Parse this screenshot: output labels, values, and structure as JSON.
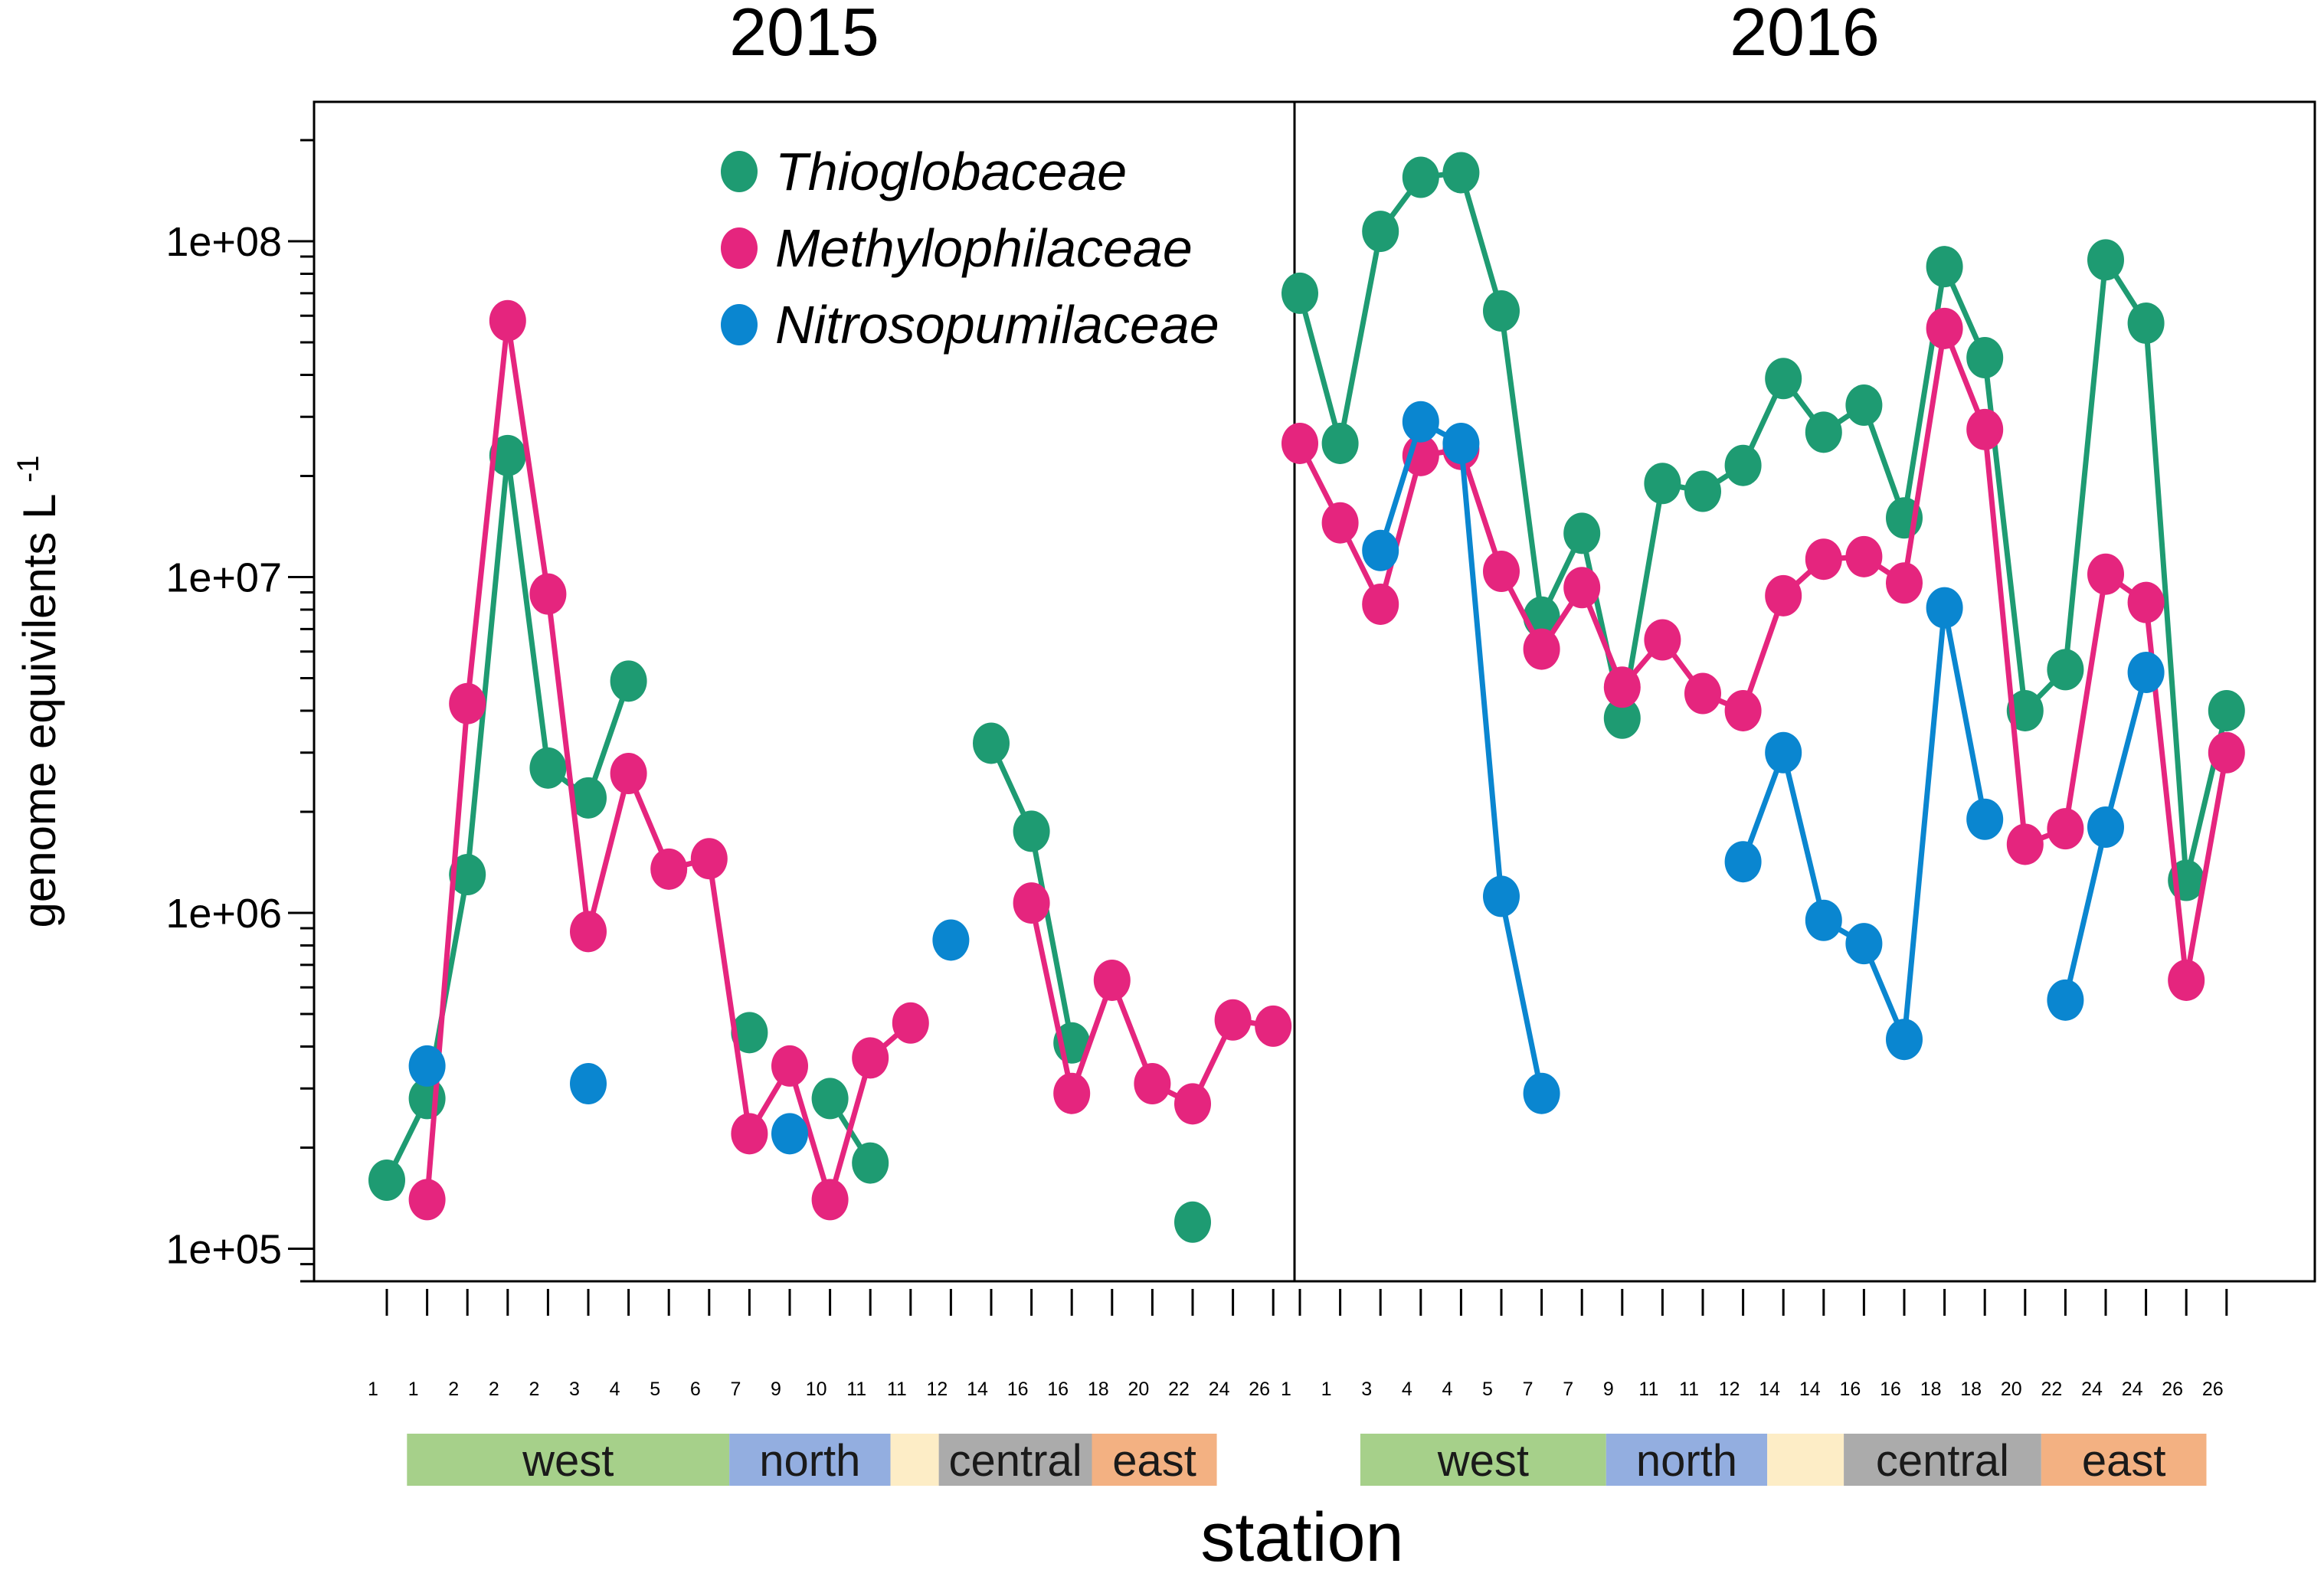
{
  "chart_data": {
    "type": "line",
    "scale": "log",
    "ylabel": "genome equivilents L",
    "ylabel_superscript": "-1",
    "xlabel": "station",
    "ylim": [
      80000,
      260000000
    ],
    "yticks": [
      {
        "value": 100000,
        "label": "1e+05"
      },
      {
        "value": 1000000,
        "label": "1e+06"
      },
      {
        "value": 10000000,
        "label": "1e+07"
      },
      {
        "value": 100000000,
        "label": "1e+08"
      }
    ],
    "legend": [
      {
        "name": "Thioglobaceae",
        "color": "#1E9B72"
      },
      {
        "name": "Methylophilaceae",
        "color": "#E5257E"
      },
      {
        "name": "Nitrosopumilaceae",
        "color": "#0A86D0"
      }
    ],
    "panels": [
      {
        "title": "2015",
        "tick_labels": [
          "1",
          "1",
          "2",
          "2",
          "2",
          "3",
          "4",
          "5",
          "6",
          "7",
          "9",
          "10",
          "11",
          "11",
          "12",
          "14",
          "16",
          "16",
          "18",
          "20",
          "22",
          "24",
          "26"
        ],
        "regions": [
          {
            "label": "west",
            "color": "#A6D08A",
            "start": 1.5,
            "end": 9.5
          },
          {
            "label": "north",
            "color": "#93AEE0",
            "start": 9.5,
            "end": 13.5
          },
          {
            "label": "",
            "color": "#FDEDC6",
            "start": 13.5,
            "end": 14.7
          },
          {
            "label": "central",
            "color": "#ABABAB",
            "start": 14.7,
            "end": 18.5
          },
          {
            "label": "east",
            "color": "#F3B182",
            "start": 18.5,
            "end": 21.6
          }
        ],
        "series": [
          {
            "name": "Thioglobaceae",
            "values": [
              160000,
              280000,
              1300000,
              23000000,
              2700000,
              2200000,
              4900000,
              null,
              null,
              440000,
              null,
              280000,
              180000,
              null,
              null,
              3200000,
              1750000,
              410000,
              null,
              null,
              120000,
              null,
              null
            ]
          },
          {
            "name": "Methylophilaceae",
            "values": [
              null,
              140000,
              4200000,
              58000000,
              8900000,
              880000,
              2600000,
              1350000,
              1450000,
              220000,
              350000,
              140000,
              370000,
              470000,
              null,
              null,
              1070000,
              290000,
              630000,
              310000,
              270000,
              480000,
              460000
            ]
          },
          {
            "name": "Nitrosopumilaceae",
            "values": [
              null,
              350000,
              null,
              null,
              null,
              310000,
              null,
              null,
              null,
              null,
              220000,
              null,
              null,
              null,
              830000,
              null,
              null,
              null,
              null,
              null,
              null,
              null,
              null
            ]
          }
        ]
      },
      {
        "title": "2016",
        "tick_labels": [
          "1",
          "1",
          "3",
          "4",
          "4",
          "5",
          "7",
          "7",
          "9",
          "11",
          "11",
          "12",
          "14",
          "14",
          "16",
          "16",
          "18",
          "18",
          "20",
          "22",
          "24",
          "24",
          "26",
          "26"
        ],
        "regions": [
          {
            "label": "west",
            "color": "#A6D08A",
            "start": 2.5,
            "end": 8.6
          },
          {
            "label": "north",
            "color": "#93AEE0",
            "start": 8.6,
            "end": 12.6
          },
          {
            "label": "",
            "color": "#FDEDC6",
            "start": 12.6,
            "end": 14.5
          },
          {
            "label": "central",
            "color": "#ABABAB",
            "start": 14.5,
            "end": 19.4
          },
          {
            "label": "east",
            "color": "#F3B182",
            "start": 19.4,
            "end": 23.5
          }
        ],
        "series": [
          {
            "name": "Thioglobaceae",
            "values": [
              70000000,
              25000000,
              107000000,
              155000000,
              160000000,
              62000000,
              7600000,
              13500000,
              3800000,
              19000000,
              18000000,
              21500000,
              39000000,
              27000000,
              32500000,
              15000000,
              84000000,
              45000000,
              4000000,
              5300000,
              88000000,
              57000000,
              1250000,
              4000000
            ]
          },
          {
            "name": "Methylophilaceae",
            "values": [
              25000000,
              14500000,
              8300000,
              23000000,
              24000000,
              10400000,
              6100000,
              9300000,
              4700000,
              6500000,
              4500000,
              4000000,
              8800000,
              11300000,
              11500000,
              9600000,
              55000000,
              27500000,
              1600000,
              1780000,
              10200000,
              8400000,
              630000,
              3000000
            ]
          },
          {
            "name": "Nitrosopumilaceae",
            "values": [
              null,
              null,
              12000000,
              29000000,
              25000000,
              1120000,
              290000,
              null,
              null,
              null,
              null,
              1420000,
              3000000,
              950000,
              810000,
              420000,
              8100000,
              1900000,
              null,
              550000,
              1800000,
              5200000,
              null,
              null
            ]
          }
        ]
      }
    ]
  }
}
